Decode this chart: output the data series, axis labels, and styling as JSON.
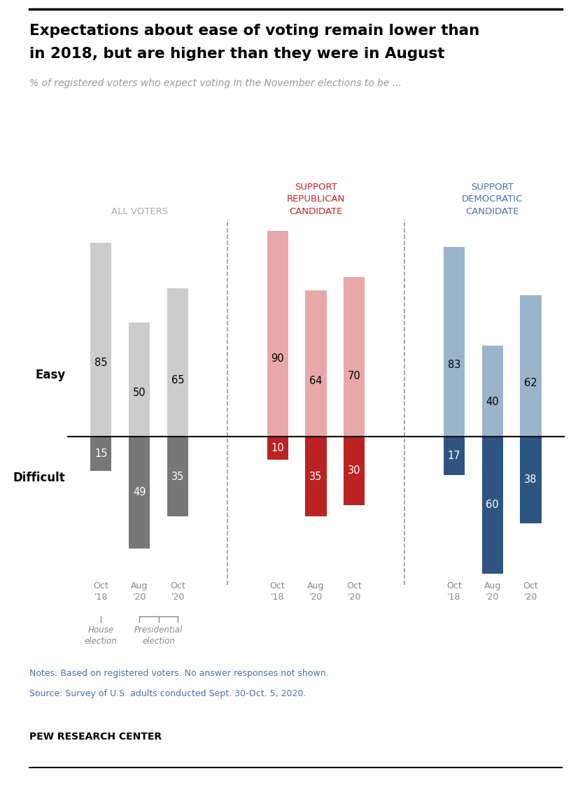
{
  "title_line1": "Expectations about ease of voting remain lower than",
  "title_line2": "in 2018, but are higher than they were in August",
  "subtitle": "% of registered voters who expect voting in the November elections to be ...",
  "notes_line1": "Notes: Based on registered voters. No answer responses not shown.",
  "notes_line2": "Source: Survey of U.S. adults conducted Sept. 30-Oct. 5, 2020.",
  "brand": "PEW RESEARCH CENTER",
  "groups": [
    {
      "label": "ALL VOTERS",
      "label_color": "#aaaaaa",
      "easy_color": "#cccccc",
      "difficult_color": "#777777",
      "bars": [
        {
          "period_line1": "Oct",
          "period_line2": "'18",
          "easy": 85,
          "difficult": 15
        },
        {
          "period_line1": "Aug",
          "period_line2": "'20",
          "easy": 50,
          "difficult": 49
        },
        {
          "period_line1": "Oct",
          "period_line2": "'20",
          "easy": 65,
          "difficult": 35
        }
      ]
    },
    {
      "label": "SUPPORT\nREPUBLICAN\nCANDIDATE",
      "label_color": "#cc2222",
      "easy_color": "#e8a8a8",
      "difficult_color": "#bb2222",
      "bars": [
        {
          "period_line1": "Oct",
          "period_line2": "'18",
          "easy": 90,
          "difficult": 10
        },
        {
          "period_line1": "Aug",
          "period_line2": "'20",
          "easy": 64,
          "difficult": 35
        },
        {
          "period_line1": "Oct",
          "period_line2": "'20",
          "easy": 70,
          "difficult": 30
        }
      ]
    },
    {
      "label": "SUPPORT\nDEMOCRATIC\nCANDIDATE",
      "label_color": "#4a72a8",
      "easy_color": "#9ab4cc",
      "difficult_color": "#2e5580",
      "bars": [
        {
          "period_line1": "Oct",
          "period_line2": "'18",
          "easy": 83,
          "difficult": 17
        },
        {
          "period_line1": "Aug",
          "period_line2": "'20",
          "easy": 40,
          "difficult": 60
        },
        {
          "period_line1": "Oct",
          "period_line2": "'20",
          "easy": 62,
          "difficult": 38
        }
      ]
    }
  ],
  "easy_label": "Easy",
  "difficult_label": "Difficult"
}
